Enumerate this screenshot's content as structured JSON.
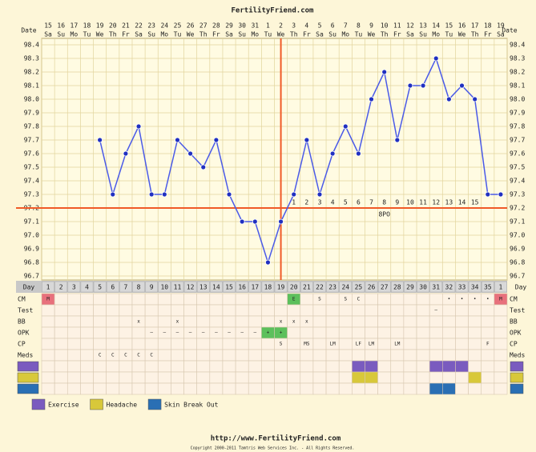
{
  "chart_data": {
    "type": "line",
    "title": "FertilityFriend.com",
    "date_label": "Date",
    "day_label": "Day",
    "categories": [
      "15",
      "16",
      "17",
      "18",
      "19",
      "20",
      "21",
      "22",
      "23",
      "24",
      "25",
      "26",
      "27",
      "28",
      "29",
      "30",
      "31",
      "1",
      "2",
      "3",
      "4",
      "5",
      "6",
      "7",
      "8",
      "9",
      "10",
      "11",
      "12",
      "13",
      "14",
      "15",
      "16",
      "17",
      "18",
      "19"
    ],
    "weekdays": [
      "Sa",
      "Su",
      "Mo",
      "Tu",
      "We",
      "Th",
      "Fr",
      "Sa",
      "Su",
      "Mo",
      "Tu",
      "We",
      "Th",
      "Fr",
      "Sa",
      "Su",
      "Mo",
      "Tu",
      "We",
      "Th",
      "Fr",
      "Sa",
      "Su",
      "Mo",
      "Tu",
      "We",
      "Th",
      "Fr",
      "Sa",
      "Su",
      "Mo",
      "Tu",
      "We",
      "Th",
      "Fr",
      "Sa"
    ],
    "cycle_days": [
      1,
      2,
      3,
      4,
      5,
      6,
      7,
      8,
      9,
      10,
      11,
      12,
      13,
      14,
      15,
      16,
      17,
      18,
      19,
      20,
      21,
      22,
      23,
      24,
      25,
      26,
      27,
      28,
      29,
      30,
      31,
      32,
      33,
      34,
      35,
      1
    ],
    "values": [
      null,
      null,
      null,
      null,
      97.7,
      97.3,
      97.6,
      97.8,
      97.3,
      97.3,
      97.7,
      97.6,
      97.5,
      97.7,
      97.3,
      97.1,
      97.1,
      96.8,
      97.1,
      97.3,
      97.7,
      97.3,
      97.6,
      97.8,
      97.6,
      98.0,
      98.2,
      97.7,
      98.1,
      98.1,
      98.3,
      98.0,
      98.1,
      98.0,
      97.3,
      97.3
    ],
    "color": "#4a5ae8",
    "coverline": 97.2,
    "ovulation_day": 19,
    "line_color": "#f05a28",
    "dpo": [
      null,
      null,
      null,
      null,
      null,
      null,
      null,
      null,
      null,
      null,
      null,
      null,
      null,
      null,
      null,
      null,
      null,
      null,
      null,
      1,
      2,
      3,
      4,
      5,
      6,
      7,
      8,
      9,
      10,
      11,
      12,
      13,
      14,
      15,
      null,
      null
    ],
    "annotation": "8PO",
    "ylim": [
      96.7,
      98.4
    ],
    "yticks": [
      98.4,
      98.3,
      98.2,
      98.1,
      {
        "value": 98,
        "label": "98.0"
      },
      97.9,
      97.8,
      97.7,
      97.6,
      97.5,
      97.4,
      97.3,
      97.2,
      97.1,
      {
        "value": 97,
        "label": "97.0"
      },
      96.9,
      96.8,
      96.7
    ],
    "grid": true
  },
  "rows": [
    {
      "label": "CM",
      "cells": [
        "M",
        null,
        null,
        null,
        null,
        null,
        null,
        null,
        null,
        null,
        null,
        null,
        null,
        null,
        null,
        null,
        null,
        null,
        null,
        "E",
        null,
        "S",
        null,
        "S",
        "C",
        null,
        null,
        null,
        null,
        null,
        null,
        "•",
        "•",
        "•",
        "•",
        "M"
      ]
    },
    {
      "label": "Test",
      "cells": [
        null,
        null,
        null,
        null,
        null,
        null,
        null,
        null,
        null,
        null,
        null,
        null,
        null,
        null,
        null,
        null,
        null,
        null,
        null,
        null,
        null,
        null,
        null,
        null,
        null,
        null,
        null,
        null,
        null,
        null,
        "–",
        null,
        null,
        null,
        null,
        null
      ]
    },
    {
      "label": "BB",
      "cells": [
        null,
        null,
        null,
        null,
        null,
        null,
        null,
        "x",
        null,
        null,
        "x",
        null,
        null,
        null,
        null,
        null,
        null,
        null,
        "x",
        "x",
        "x",
        null,
        null,
        null,
        null,
        null,
        null,
        null,
        null,
        null,
        null,
        null,
        null,
        null,
        null,
        null
      ]
    },
    {
      "label": "OPK",
      "cells": [
        null,
        null,
        null,
        null,
        null,
        null,
        null,
        null,
        "–",
        "–",
        "–",
        "–",
        "–",
        "–",
        "–",
        "–",
        "–",
        "+",
        "+",
        null,
        null,
        null,
        null,
        null,
        null,
        null,
        null,
        null,
        null,
        null,
        null,
        null,
        null,
        null,
        null,
        null
      ]
    },
    {
      "label": "CP",
      "cells": [
        null,
        null,
        null,
        null,
        null,
        null,
        null,
        null,
        null,
        null,
        null,
        null,
        null,
        null,
        null,
        null,
        null,
        null,
        "S",
        null,
        "MS",
        null,
        "LM",
        null,
        "LF",
        "LM",
        null,
        "LM",
        null,
        null,
        null,
        null,
        null,
        null,
        "F",
        null
      ]
    },
    {
      "label": "Meds",
      "cells": [
        null,
        null,
        null,
        null,
        "C",
        "C",
        "C",
        "C",
        "C",
        null,
        null,
        null,
        null,
        null,
        null,
        null,
        null,
        null,
        null,
        null,
        null,
        null,
        null,
        null,
        null,
        null,
        null,
        null,
        null,
        null,
        null,
        null,
        null,
        null,
        null,
        null
      ]
    }
  ],
  "cell_colors": {
    "M": "#e8707c",
    "E": "#5cc05c",
    "+": "#5cc05c"
  },
  "custom_rows": [
    {
      "name": "Exercise",
      "color": "#7a5bbf",
      "cells": [
        false,
        false,
        false,
        false,
        false,
        false,
        false,
        false,
        false,
        false,
        false,
        false,
        false,
        false,
        false,
        false,
        false,
        false,
        false,
        false,
        false,
        false,
        false,
        false,
        true,
        true,
        false,
        false,
        false,
        false,
        true,
        true,
        true,
        false,
        false,
        false
      ]
    },
    {
      "name": "Headache",
      "color": "#d8c83a",
      "cells": [
        false,
        false,
        false,
        false,
        false,
        false,
        false,
        false,
        false,
        false,
        false,
        false,
        false,
        false,
        false,
        false,
        false,
        false,
        false,
        false,
        false,
        false,
        false,
        false,
        true,
        true,
        false,
        false,
        false,
        false,
        false,
        false,
        false,
        true,
        false,
        false
      ]
    },
    {
      "name": "Skin Break Out",
      "color": "#2a6fb4",
      "cells": [
        false,
        false,
        false,
        false,
        false,
        false,
        false,
        false,
        false,
        false,
        false,
        false,
        false,
        false,
        false,
        false,
        false,
        false,
        false,
        false,
        false,
        false,
        false,
        false,
        false,
        false,
        false,
        false,
        false,
        false,
        true,
        true,
        false,
        false,
        false,
        false
      ]
    }
  ],
  "footer": {
    "url": "http://www.FertilityFriend.com",
    "copyright": "Copyright 2000-2011 Tamtris Web Services Inc. - All Rights Reserved."
  }
}
